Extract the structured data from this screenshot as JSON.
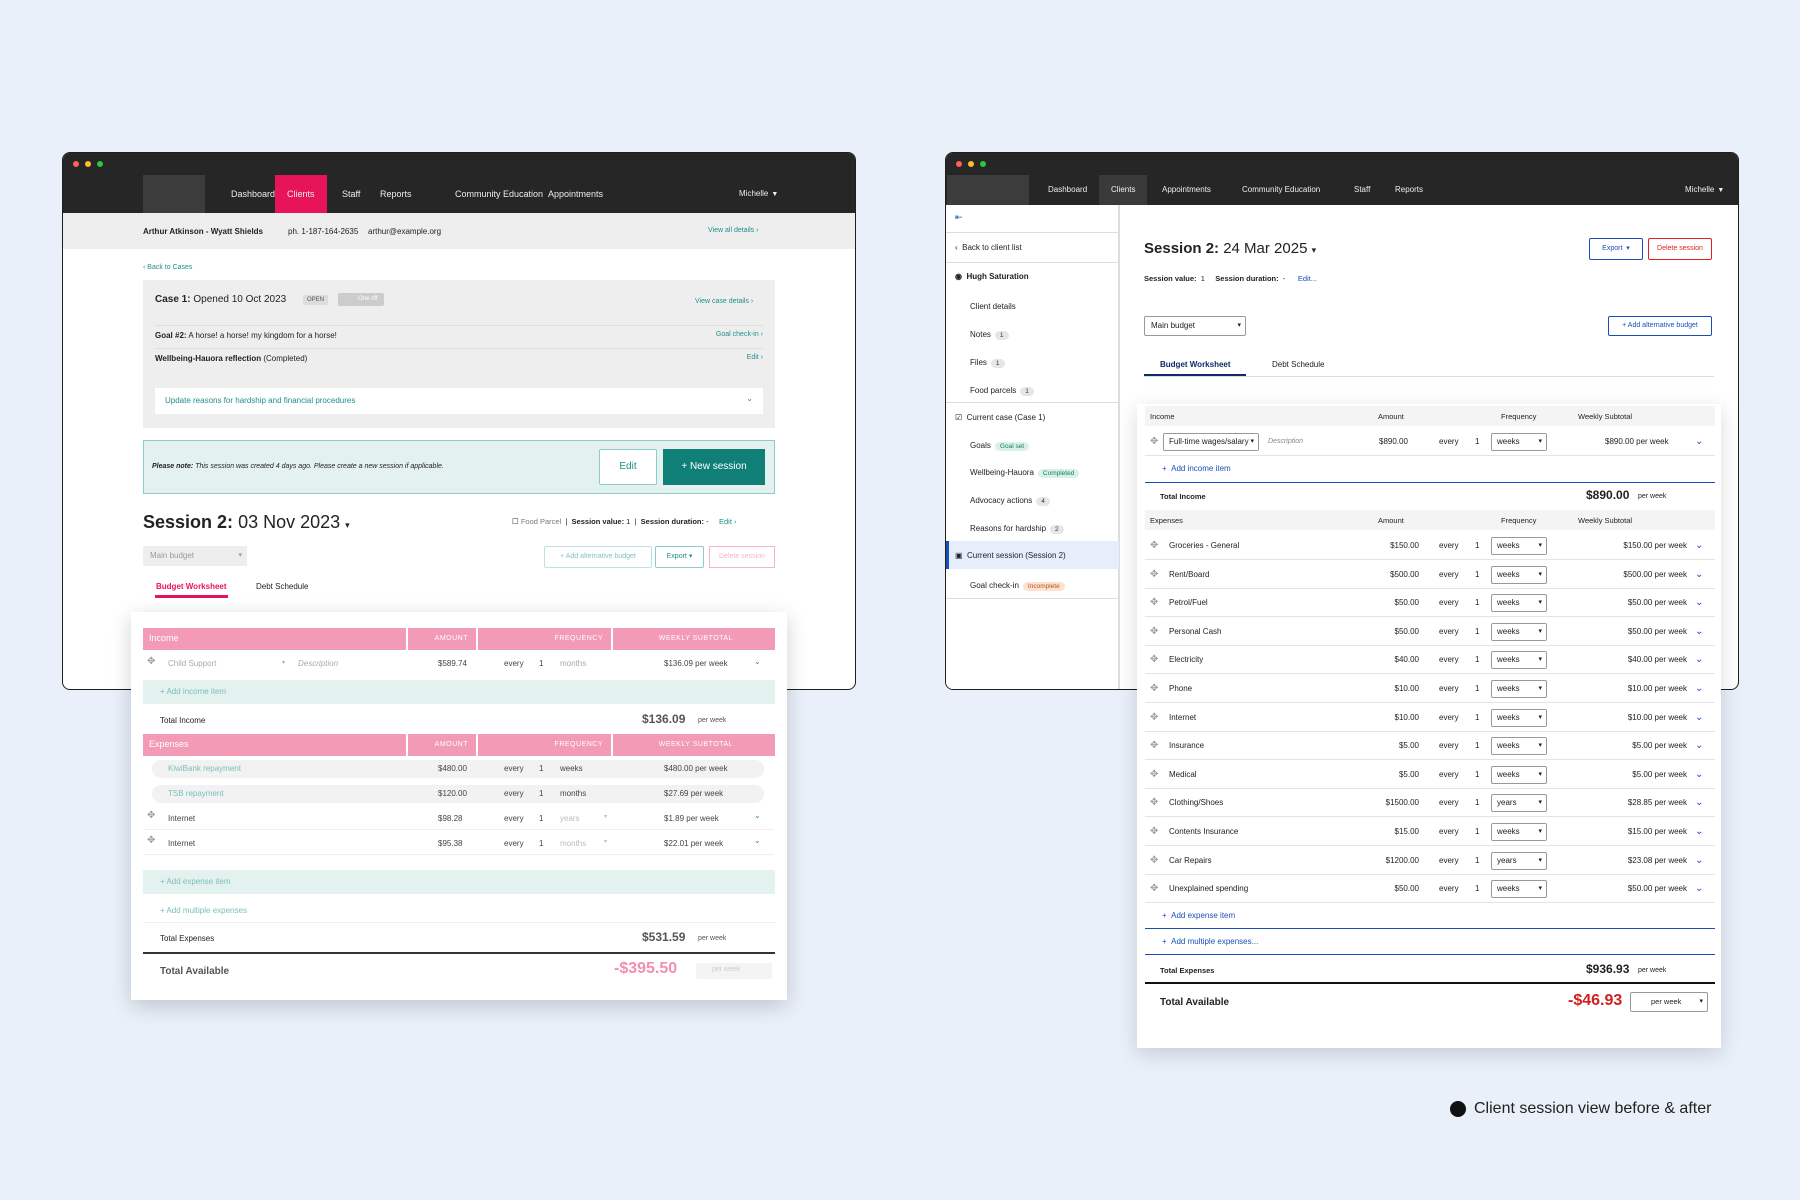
{
  "caption": "Client session view before & after",
  "left": {
    "nav": [
      "Dashboard",
      "Clients",
      "Staff",
      "Reports",
      "Community Education",
      "Appointments"
    ],
    "user": "Michelle",
    "client": {
      "name": "Arthur Atkinson - Wyatt Shields",
      "phone": "ph. 1-187-164-2635",
      "email": "arthur@example.org",
      "view_all": "View all details"
    },
    "back": "Back to Cases",
    "case": {
      "title": "Case 1:",
      "opened": "Opened 10 Oct 2023",
      "status": "OPEN",
      "toggle": "One off",
      "view": "View case details"
    },
    "goal": {
      "label": "Goal #2:",
      "text": "A horse! a horse! my kingdom for a horse!",
      "action": "Goal check-in"
    },
    "wellbeing": {
      "label": "Wellbeing-Hauora reflection",
      "status": "(Completed)",
      "action": "Edit"
    },
    "update": "Update reasons for hardship and financial procedures",
    "note": {
      "label": "Please note:",
      "text": "This session was created 4 days ago. Please create a new session if applicable.",
      "edit": "Edit",
      "new": "+ New session"
    },
    "session": {
      "title": "Session 2:",
      "date": "03 Nov 2023",
      "food": "Food Parcel",
      "value_label": "Session value:",
      "value": "1",
      "duration_label": "Session duration:",
      "duration": "-",
      "edit": "Edit"
    },
    "budget_select": "Main budget",
    "buttons": {
      "alt": "+ Add alternative budget",
      "export": "Export",
      "delete": "Delete session"
    },
    "tabs": [
      "Budget Worksheet",
      "Debt Schedule"
    ],
    "headers": {
      "income": "Income",
      "expenses": "Expenses",
      "amount": "AMOUNT",
      "frequency": "FREQUENCY",
      "weekly": "WEEKLY SUBTOTAL"
    },
    "income_row": {
      "name": "Child Support",
      "desc": "Description",
      "amount": "$589.74",
      "every": "every",
      "n": "1",
      "freq": "months",
      "sub": "$136.09 per week"
    },
    "add_income": "+ Add income item",
    "total_income": {
      "label": "Total Income",
      "value": "$136.09",
      "unit": "per week"
    },
    "expenses": [
      {
        "name": "KiwiBank repayment",
        "amount": "$480.00",
        "every": "every",
        "n": "1",
        "freq": "weeks",
        "sub": "$480.00 per week"
      },
      {
        "name": "TSB repayment",
        "amount": "$120.00",
        "every": "every",
        "n": "1",
        "freq": "months",
        "sub": "$27.69 per week"
      },
      {
        "name": "Internet",
        "amount": "$98.28",
        "every": "every",
        "n": "1",
        "freq": "years",
        "sub": "$1.89 per week"
      },
      {
        "name": "Internet",
        "amount": "$95.38",
        "every": "every",
        "n": "1",
        "freq": "months",
        "sub": "$22.01 per week"
      }
    ],
    "add_expense": "+ Add expense item",
    "add_multiple": "+ Add multiple expenses",
    "total_expenses": {
      "label": "Total Expenses",
      "value": "$531.59",
      "unit": "per week"
    },
    "total_available": {
      "label": "Total Available",
      "value": "-$395.50",
      "unit": "per week"
    }
  },
  "right": {
    "nav": [
      "Dashboard",
      "Clients",
      "Appointments",
      "Community Education",
      "Staff",
      "Reports"
    ],
    "user": "Michelle",
    "collapse": "⇤",
    "back": "Back to client list",
    "client": "Hugh Saturation",
    "client_items": [
      {
        "label": "Client details",
        "count": ""
      },
      {
        "label": "Notes",
        "count": "1"
      },
      {
        "label": "Files",
        "count": "1"
      },
      {
        "label": "Food parcels",
        "count": "1"
      }
    ],
    "case": "Current case (Case 1)",
    "case_items": [
      {
        "label": "Goals",
        "pill": "Goal set"
      },
      {
        "label": "Wellbeing-Hauora",
        "pill": "Completed"
      },
      {
        "label": "Advocacy actions",
        "pill": "4"
      },
      {
        "label": "Reasons for hardship",
        "pill": "2"
      }
    ],
    "session_item": "Current session (Session 2)",
    "goal_checkin": {
      "label": "Goal check-in",
      "pill": "Incomplete"
    },
    "session": {
      "title": "Session 2:",
      "date": "24 Mar 2025",
      "value_label": "Session value:",
      "value": "1",
      "duration_label": "Session duration:",
      "duration": "-",
      "edit": "Edit..."
    },
    "buttons": {
      "export": "Export",
      "delete": "Delete session",
      "alt": "+ Add alternative budget"
    },
    "budget_select": "Main budget",
    "tabs": [
      "Budget Worksheet",
      "Debt Schedule"
    ],
    "headers": {
      "income": "Income",
      "expenses": "Expenses",
      "amount": "Amount",
      "frequency": "Frequency",
      "weekly": "Weekly Subtotal"
    },
    "income_row": {
      "name": "Full-time wages/salary",
      "desc": "Description",
      "amount": "$890.00",
      "every": "every",
      "n": "1",
      "freq": "weeks",
      "sub": "$890.00 per week"
    },
    "add_income": "Add income item",
    "total_income": {
      "label": "Total Income",
      "value": "$890.00",
      "unit": "per week"
    },
    "expenses": [
      {
        "name": "Groceries - General",
        "amount": "$150.00",
        "freq": "weeks",
        "sub": "$150.00 per week"
      },
      {
        "name": "Rent/Board",
        "amount": "$500.00",
        "freq": "weeks",
        "sub": "$500.00 per week"
      },
      {
        "name": "Petrol/Fuel",
        "amount": "$50.00",
        "freq": "weeks",
        "sub": "$50.00 per week"
      },
      {
        "name": "Personal Cash",
        "amount": "$50.00",
        "freq": "weeks",
        "sub": "$50.00 per week"
      },
      {
        "name": "Electricity",
        "amount": "$40.00",
        "freq": "weeks",
        "sub": "$40.00 per week"
      },
      {
        "name": "Phone",
        "amount": "$10.00",
        "freq": "weeks",
        "sub": "$10.00 per week"
      },
      {
        "name": "Internet",
        "amount": "$10.00",
        "freq": "weeks",
        "sub": "$10.00 per week"
      },
      {
        "name": "Insurance",
        "amount": "$5.00",
        "freq": "weeks",
        "sub": "$5.00 per week"
      },
      {
        "name": "Medical",
        "amount": "$5.00",
        "freq": "weeks",
        "sub": "$5.00 per week"
      },
      {
        "name": "Clothing/Shoes",
        "amount": "$1500.00",
        "freq": "years",
        "sub": "$28.85 per week"
      },
      {
        "name": "Contents Insurance",
        "amount": "$15.00",
        "freq": "weeks",
        "sub": "$15.00 per week"
      },
      {
        "name": "Car Repairs",
        "amount": "$1200.00",
        "freq": "years",
        "sub": "$23.08 per week"
      },
      {
        "name": "Unexplained spending",
        "amount": "$50.00",
        "freq": "weeks",
        "sub": "$50.00 per week"
      }
    ],
    "every": "every",
    "n": "1",
    "add_expense": "Add expense item",
    "add_multiple": "Add multiple expenses...",
    "total_expenses": {
      "label": "Total Expenses",
      "value": "$936.93",
      "unit": "per week"
    },
    "total_available": {
      "label": "Total Available",
      "value": "-$46.93",
      "unit": "per week"
    }
  }
}
